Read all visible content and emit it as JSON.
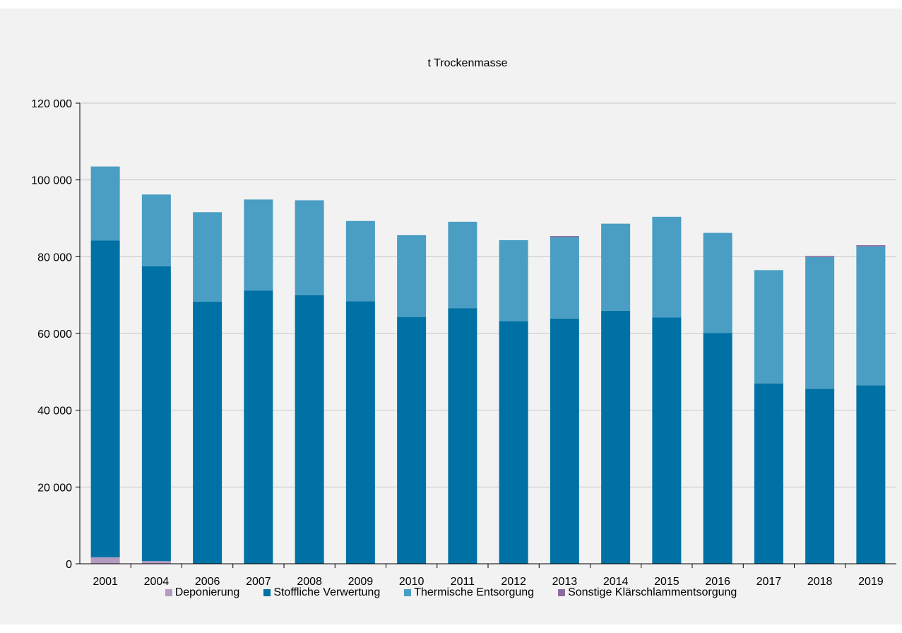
{
  "chart_data": {
    "type": "bar",
    "stacked": true,
    "title": "t Trockenmasse",
    "categories": [
      "2001",
      "2004",
      "2006",
      "2007",
      "2008",
      "2009",
      "2010",
      "2011",
      "2012",
      "2013",
      "2014",
      "2015",
      "2016",
      "2017",
      "2018",
      "2019"
    ],
    "ylim": [
      0,
      120000
    ],
    "yticks": [
      0,
      20000,
      40000,
      60000,
      80000,
      100000,
      120000
    ],
    "ytick_labels": [
      "0",
      "20 000",
      "40 000",
      "60 000",
      "80 000",
      "100 000",
      "120 000"
    ],
    "grid": true,
    "legend_position": "bottom",
    "series": [
      {
        "name": "Deponierung",
        "color": "#b39ac1",
        "values": [
          1700,
          700,
          0,
          0,
          0,
          0,
          0,
          0,
          0,
          0,
          0,
          0,
          0,
          0,
          0,
          0
        ]
      },
      {
        "name": "Stoffliche Verwertung",
        "color": "#0071a4",
        "values": [
          82500,
          76800,
          68300,
          71200,
          70000,
          68400,
          64300,
          66600,
          63200,
          63900,
          65900,
          64200,
          60100,
          47000,
          45600,
          46500
        ]
      },
      {
        "name": "Thermische Entsorgung",
        "color": "#4a9ec3",
        "values": [
          19300,
          18700,
          23300,
          23700,
          24700,
          20900,
          21300,
          22500,
          21100,
          21200,
          22700,
          26200,
          26100,
          29500,
          34300,
          36200
        ]
      },
      {
        "name": "Sonstige Klärschlammentsorgung",
        "color": "#8e6b9e",
        "values": [
          0,
          0,
          0,
          0,
          0,
          0,
          0,
          0,
          0,
          300,
          0,
          0,
          0,
          0,
          300,
          300
        ]
      }
    ]
  }
}
